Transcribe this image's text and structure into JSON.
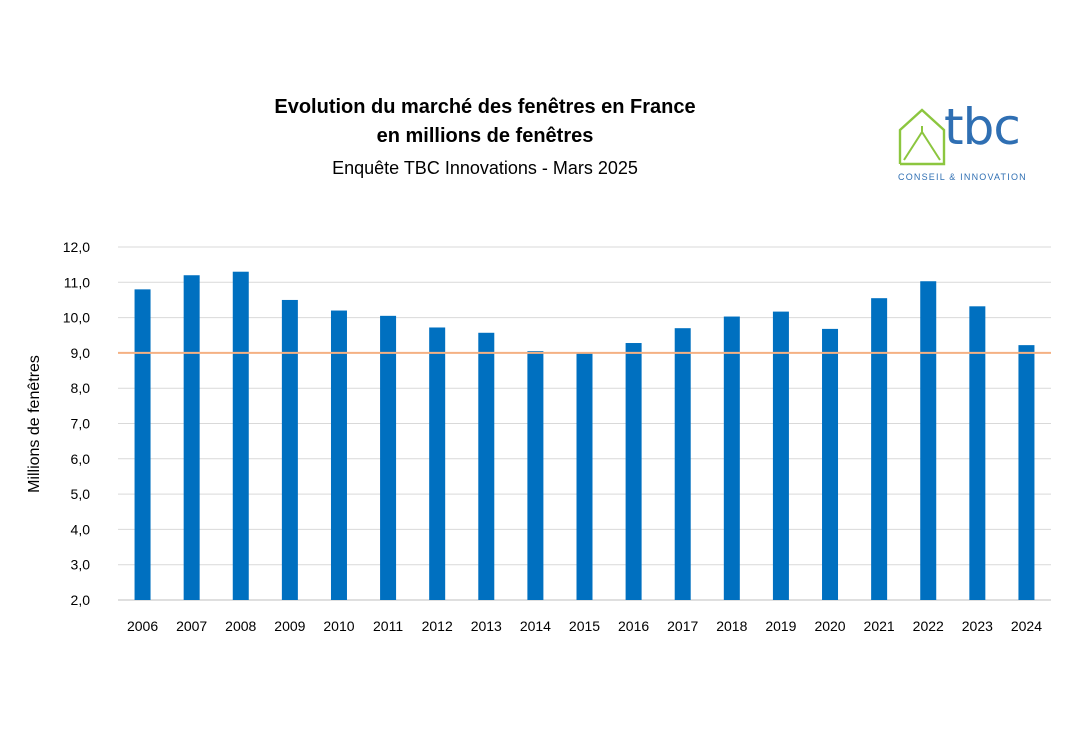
{
  "header": {
    "title_line1": "Evolution du marché des fenêtres en France",
    "title_line2": "en millions de fenêtres",
    "subtitle": "Enquête TBC Innovations - Mars 2025"
  },
  "logo": {
    "wordmark": "tbc",
    "tagline": "CONSEIL & INNOVATION",
    "icon": "house-icon",
    "colors": {
      "house": "#8cc63f",
      "text": "#2f6fb3"
    }
  },
  "chart_data": {
    "type": "bar",
    "categories": [
      "2006",
      "2007",
      "2008",
      "2009",
      "2010",
      "2011",
      "2012",
      "2013",
      "2014",
      "2015",
      "2016",
      "2017",
      "2018",
      "2019",
      "2020",
      "2021",
      "2022",
      "2023",
      "2024"
    ],
    "values": [
      10.8,
      11.2,
      11.3,
      10.5,
      10.2,
      10.05,
      9.72,
      9.57,
      9.05,
      9.0,
      9.28,
      9.7,
      10.03,
      10.17,
      9.68,
      10.55,
      11.03,
      10.32,
      9.22
    ],
    "title": "Evolution du marché des fenêtres en France en millions de fenêtres",
    "subtitle": "Enquête TBC Innovations - Mars 2025",
    "xlabel": "",
    "ylabel": "Millions de fenêtres",
    "ylim": [
      2.0,
      12.0
    ],
    "yticks": [
      "2,0",
      "3,0",
      "4,0",
      "5,0",
      "6,0",
      "7,0",
      "8,0",
      "9,0",
      "10,0",
      "11,0",
      "12,0"
    ],
    "reference_line": 9.0,
    "grid": true,
    "legend": "none",
    "colors": {
      "bar": "#0070c0",
      "reference_line": "#f4b183",
      "grid": "#d9d9d9"
    }
  }
}
